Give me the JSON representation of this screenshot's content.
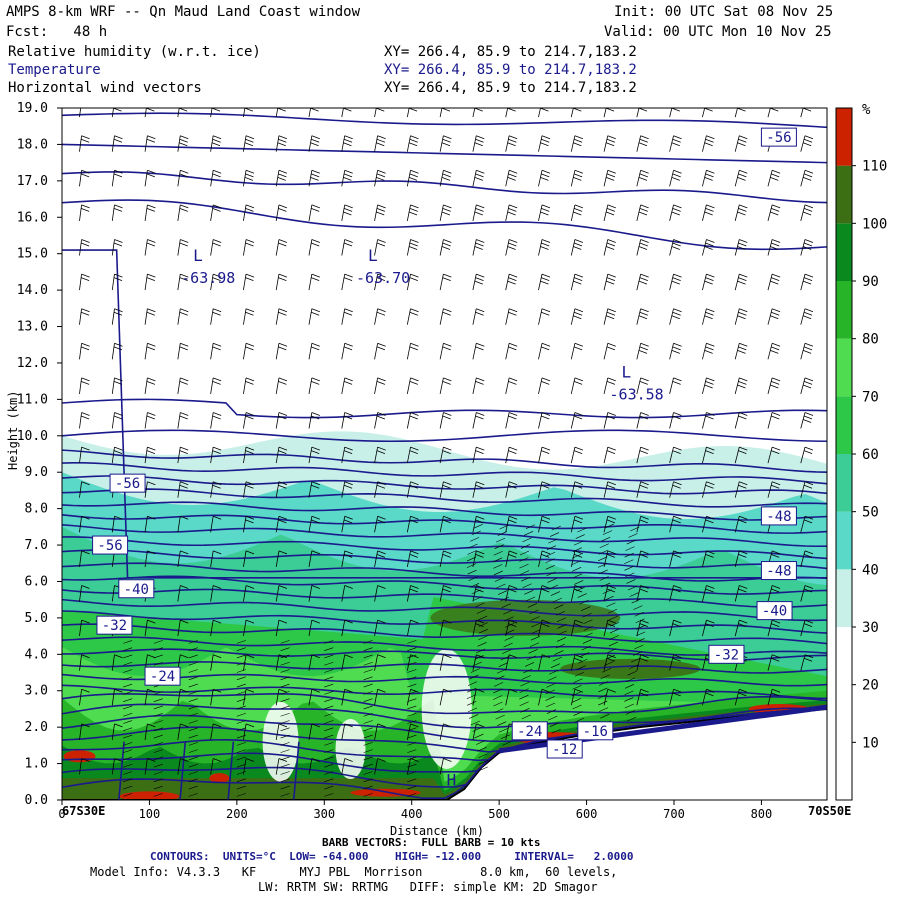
{
  "header": {
    "title": "AMPS 8-km WRF -- Qn Maud Land Coast window",
    "init": "Init: 00 UTC Sat 08 Nov 25",
    "fcst": "Fcst:   48 h",
    "valid": "Valid: 00 UTC Mon 10 Nov 25",
    "fields": [
      {
        "name": "Relative humidity (w.r.t. ice)",
        "xy": "XY= 266.4, 85.9 to 214.7,183.2"
      },
      {
        "name": "Temperature",
        "xy": "XY= 266.4, 85.9 to 214.7,183.2"
      },
      {
        "name": "Horizontal wind vectors",
        "xy": "XY= 266.4, 85.9 to 214.7,183.2"
      }
    ]
  },
  "colors": {
    "temperature_contour": "#1a1a8c",
    "rh_scale": [
      "#ffffff",
      "#ffffff",
      "#ffffff",
      "#c8f0e8",
      "#5ad8c8",
      "#3ccc96",
      "#2ec848",
      "#50dc50",
      "#28b428",
      "#0a8a1e",
      "#3c6e14",
      "#cc2200"
    ]
  },
  "chart_data": {
    "type": "cross-section",
    "xlabel": "Distance (km)",
    "ylabel": "Height (km)",
    "xlim": [
      0,
      875
    ],
    "ylim": [
      0,
      19
    ],
    "x_ticks": [
      0,
      100,
      200,
      300,
      400,
      500,
      600,
      700,
      800
    ],
    "y_ticks": [
      "0.0",
      "1.0",
      "2.0",
      "3.0",
      "4.0",
      "5.0",
      "6.0",
      "7.0",
      "8.0",
      "9.0",
      "10.0",
      "11.0",
      "12.0",
      "13.0",
      "14.0",
      "15.0",
      "16.0",
      "17.0",
      "18.0",
      "19.0"
    ],
    "left_endpoint": "67S30E",
    "right_endpoint": "70S50E",
    "colorbar": {
      "unit": "%",
      "ticks": [
        10,
        20,
        30,
        40,
        50,
        60,
        70,
        80,
        90,
        100,
        110
      ],
      "bounds": [
        0,
        120
      ]
    },
    "terrain_height_km": [
      [
        0,
        0.0
      ],
      [
        440,
        0.0
      ],
      [
        460,
        0.3
      ],
      [
        480,
        0.9
      ],
      [
        500,
        1.3
      ],
      [
        540,
        1.55
      ],
      [
        600,
        1.8
      ],
      [
        660,
        2.0
      ],
      [
        720,
        2.15
      ],
      [
        780,
        2.3
      ],
      [
        830,
        2.4
      ],
      [
        875,
        2.5
      ]
    ],
    "temperature_labels": [
      "-56",
      "-56",
      "-48",
      "-40",
      "-32",
      "-24",
      "-56",
      "-48",
      "-40",
      "-32",
      "-24",
      "-16",
      "-12"
    ],
    "lows": [
      {
        "label": "L",
        "value": "-63.98",
        "x_km": 150,
        "z_km": 14.8
      },
      {
        "label": "L",
        "value": "-63.70",
        "x_km": 350,
        "z_km": 14.8
      },
      {
        "label": "L",
        "value": "-63.58",
        "x_km": 640,
        "z_km": 11.6
      }
    ],
    "highs": [
      {
        "label": "H",
        "x_km": 440,
        "z_km": 0.4
      }
    ],
    "contour_interval": 2.0,
    "low": -64.0,
    "high": -12.0
  },
  "footer": {
    "barb": "BARB VECTORS:  FULL BARB = 10 kts",
    "contours": "CONTOURS:  UNITS=°C  LOW= -64.000    HIGH= -12.000     INTERVAL=   2.0000",
    "model_info": "Model Info: V4.3.3   KF      MYJ PBL  Morrison        8.0 km,  60 levels,",
    "physics": "LW: RRTM SW: RRTMG   DIFF: simple KM: 2D Smagor"
  }
}
